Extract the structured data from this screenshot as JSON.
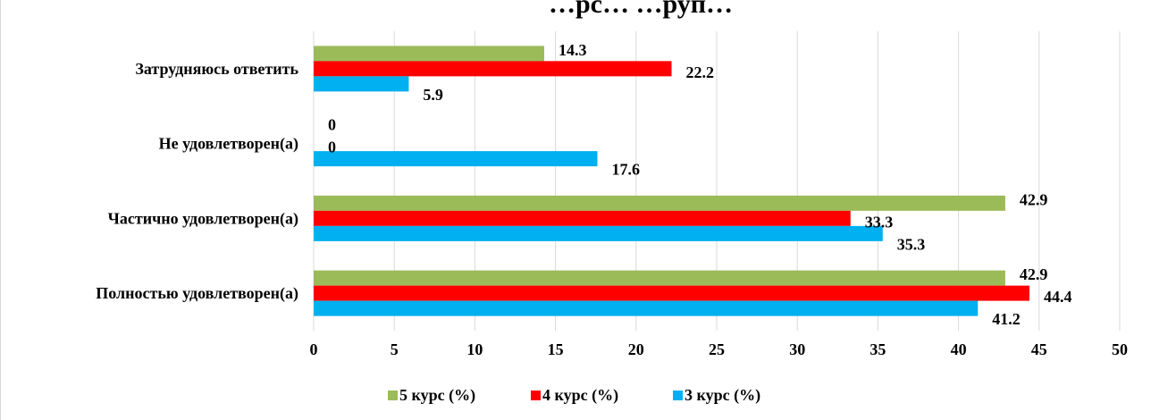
{
  "chart_data": {
    "type": "bar",
    "orientation": "horizontal",
    "title": "…рс… …руп…",
    "categories": [
      "Затрудняюсь ответить",
      "Не удовлетворен(а)",
      "Частично удовлетворен(а)",
      "Полностью удовлетворен(а)"
    ],
    "series": [
      {
        "name": "5 курс (%)",
        "color": "#9bbb59",
        "values": [
          14.3,
          0,
          42.9,
          42.9
        ]
      },
      {
        "name": "4 курс (%)",
        "color": "#ff0000",
        "values": [
          22.2,
          0,
          33.3,
          44.4
        ]
      },
      {
        "name": "3 курс (%)",
        "color": "#00b0f0",
        "values": [
          5.9,
          17.6,
          35.3,
          41.2
        ]
      }
    ],
    "xlim": [
      0,
      50
    ],
    "xticks": [
      0,
      5,
      10,
      15,
      20,
      25,
      30,
      35,
      40,
      45,
      50
    ],
    "xlabel": "",
    "ylabel": "",
    "grid": true,
    "legend_position": "bottom"
  }
}
